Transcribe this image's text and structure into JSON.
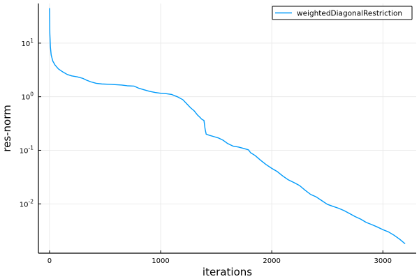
{
  "chart_data": {
    "type": "line",
    "title": "",
    "xlabel": "iterations",
    "ylabel": "res-norm",
    "xscale": "linear",
    "yscale": "log",
    "xlim": [
      -100,
      3300
    ],
    "ylim": [
      0.0012,
      55
    ],
    "grid": true,
    "legend_position": "top-right",
    "x_ticks": [
      {
        "value": 0,
        "label": "0"
      },
      {
        "value": 1000,
        "label": "1000"
      },
      {
        "value": 2000,
        "label": "2000"
      },
      {
        "value": 3000,
        "label": "3000"
      }
    ],
    "y_ticks": [
      {
        "value": 10,
        "base": "10",
        "exp": "1"
      },
      {
        "value": 1,
        "base": "10",
        "exp": "0"
      },
      {
        "value": 0.1,
        "base": "10",
        "exp": "-1"
      },
      {
        "value": 0.01,
        "base": "10",
        "exp": "-2"
      }
    ],
    "series": [
      {
        "name": "weightedDiagonalRestriction",
        "color": "#009AFA",
        "x": [
          0,
          3,
          8,
          15,
          30,
          50,
          80,
          120,
          160,
          200,
          250,
          300,
          330,
          370,
          420,
          470,
          550,
          650,
          700,
          760,
          800,
          850,
          900,
          950,
          1000,
          1050,
          1100,
          1150,
          1200,
          1240,
          1270,
          1300,
          1330,
          1350,
          1370,
          1390,
          1400,
          1410,
          1440,
          1480,
          1520,
          1560,
          1600,
          1650,
          1700,
          1750,
          1790,
          1810,
          1850,
          1900,
          1950,
          2000,
          2050,
          2100,
          2150,
          2200,
          2250,
          2300,
          2350,
          2400,
          2450,
          2500,
          2550,
          2600,
          2650,
          2700,
          2750,
          2800,
          2850,
          2900,
          2950,
          3000,
          3050,
          3100,
          3150,
          3200
        ],
        "y": [
          45,
          15,
          8.5,
          6.0,
          4.6,
          3.9,
          3.3,
          2.9,
          2.6,
          2.45,
          2.35,
          2.2,
          2.05,
          1.9,
          1.78,
          1.73,
          1.7,
          1.65,
          1.6,
          1.58,
          1.45,
          1.35,
          1.26,
          1.2,
          1.16,
          1.14,
          1.1,
          1.0,
          0.88,
          0.72,
          0.62,
          0.55,
          0.46,
          0.42,
          0.38,
          0.36,
          0.25,
          0.2,
          0.19,
          0.18,
          0.17,
          0.155,
          0.135,
          0.12,
          0.115,
          0.108,
          0.102,
          0.09,
          0.08,
          0.065,
          0.054,
          0.046,
          0.04,
          0.033,
          0.028,
          0.025,
          0.022,
          0.018,
          0.015,
          0.0135,
          0.0115,
          0.0098,
          0.009,
          0.0083,
          0.0075,
          0.0066,
          0.0058,
          0.0052,
          0.0045,
          0.0041,
          0.0037,
          0.0033,
          0.003,
          0.0026,
          0.0022,
          0.0018
        ]
      }
    ]
  }
}
